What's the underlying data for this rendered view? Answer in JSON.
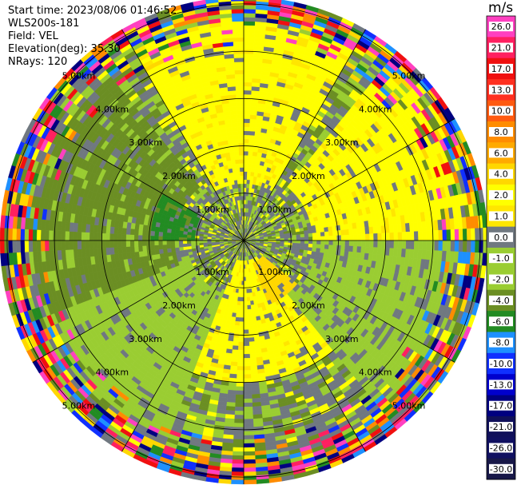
{
  "header": {
    "start_time": "Start time: 2023/08/06 01:46:52",
    "instrument": "WLS200s-181",
    "field": "Field: VEL",
    "elevation": "Elevation(deg): 35.30",
    "nrays": "NRays: 120"
  },
  "chart_data": {
    "type": "heatmap",
    "subtype": "polar-ppi",
    "field": "VEL",
    "range_rings_km": [
      1.0,
      2.0,
      3.0,
      4.0,
      5.0
    ],
    "ring_labels": [
      "1.00km",
      "2.00km",
      "3.00km",
      "4.00km",
      "5.00km"
    ],
    "n_rays": 120,
    "spokes": 12,
    "colorbar": {
      "unit": "m/s",
      "tick_labels": [
        "26.0",
        "21.0",
        "17.0",
        "13.0",
        "10.0",
        "8.0",
        "6.0",
        "4.0",
        "2.0",
        "1.0",
        "0.0",
        "-1.0",
        "-2.0",
        "-4.0",
        "-6.0",
        "-8.0",
        "-10.0",
        "-13.0",
        "-17.0",
        "-21.0",
        "-26.0",
        "-30.0"
      ],
      "colors": [
        "#ff40c0",
        "#ff2060",
        "#f01010",
        "#ff3020",
        "#ff5a10",
        "#ff8c00",
        "#ffaa00",
        "#ffd700",
        "#ffff00",
        "#ffe600",
        "#707880",
        "#9acd32",
        "#9acd32",
        "#6b8e23",
        "#228b22",
        "#1e90ff",
        "#1030ff",
        "#0000cd",
        "#000080",
        "#10105a",
        "#101060",
        "#181848"
      ]
    },
    "regions": [
      {
        "name": "inner-center",
        "r": [
          0.0,
          0.8
        ],
        "az_deg": [
          0,
          360
        ],
        "value": 0.0
      },
      {
        "name": "north-positive",
        "r": [
          1.2,
          4.8
        ],
        "az_deg": [
          330,
          30
        ],
        "value": 2.0
      },
      {
        "name": "northeast-positive",
        "r": [
          1.5,
          4.8
        ],
        "az_deg": [
          40,
          90
        ],
        "value": 2.0
      },
      {
        "name": "south-positive",
        "r": [
          0.4,
          3.0
        ],
        "az_deg": [
          140,
          200
        ],
        "value": 2.0
      },
      {
        "name": "south-strong",
        "r": [
          0.5,
          1.5
        ],
        "az_deg": [
          130,
          160
        ],
        "value": 4.0
      },
      {
        "name": "west-negative",
        "r": [
          1.5,
          4.5
        ],
        "az_deg": [
          250,
          320
        ],
        "value": -4.0
      },
      {
        "name": "west-strong-negative",
        "r": [
          1.0,
          2.0
        ],
        "az_deg": [
          270,
          300
        ],
        "value": -6.0
      },
      {
        "name": "southwest-mixed",
        "r": [
          1.2,
          4.5
        ],
        "az_deg": [
          200,
          250
        ],
        "value": -2.0
      },
      {
        "name": "east-mixed",
        "r": [
          1.5,
          4.5
        ],
        "az_deg": [
          90,
          140
        ],
        "value": -1.0
      }
    ]
  }
}
